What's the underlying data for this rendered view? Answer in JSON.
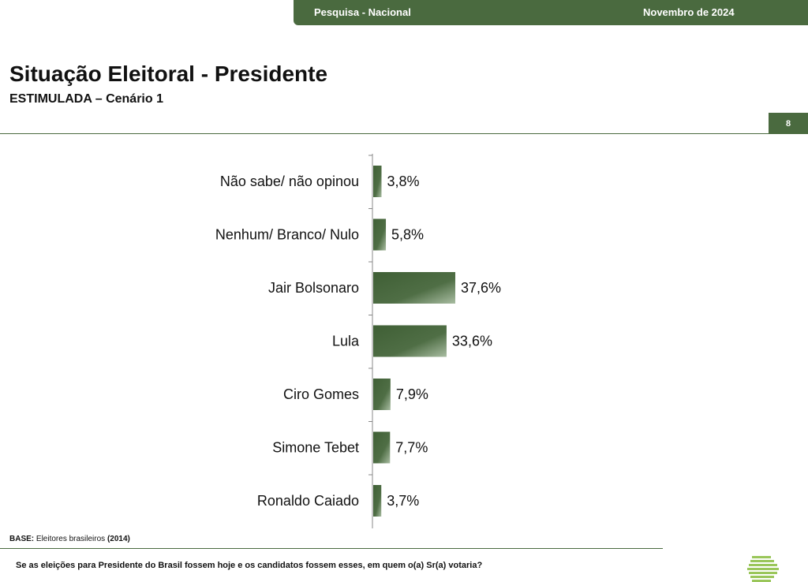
{
  "header": {
    "survey_label": "Pesquisa - Nacional",
    "date_label": "Novembro de 2024"
  },
  "page": {
    "title": "Situação Eleitoral - Presidente",
    "subtitle": "ESTIMULADA – Cenário 1",
    "page_number": "8"
  },
  "footer": {
    "base_label": "BASE:",
    "base_text": "Eleitores brasileiros",
    "base_count": "(2014)",
    "question": "Se as eleições para Presidente do Brasil fossem hoje e os candidatos fossem esses, em quem o(a) Sr(a) votaria?"
  },
  "colors": {
    "brand_green": "#4a6a3f",
    "bar_dark": "#3f5f35",
    "bar_light": "#8fa886",
    "logo_green": "#9ac65a"
  },
  "chart_data": {
    "type": "bar",
    "orientation": "horizontal",
    "categories": [
      "Não sabe/ não opinou",
      "Nenhum/ Branco/ Nulo",
      "Jair Bolsonaro",
      "Lula",
      "Ciro Gomes",
      "Simone Tebet",
      "Ronaldo Caiado"
    ],
    "values": [
      3.8,
      5.8,
      37.6,
      33.6,
      7.9,
      7.7,
      3.7
    ],
    "data_labels": [
      "3,8%",
      "5,8%",
      "37,6%",
      "33,6%",
      "7,9%",
      "7,7%",
      "3,7%"
    ],
    "unit": "%",
    "xlim": [
      0,
      100
    ],
    "grid": false,
    "legend": "none"
  }
}
